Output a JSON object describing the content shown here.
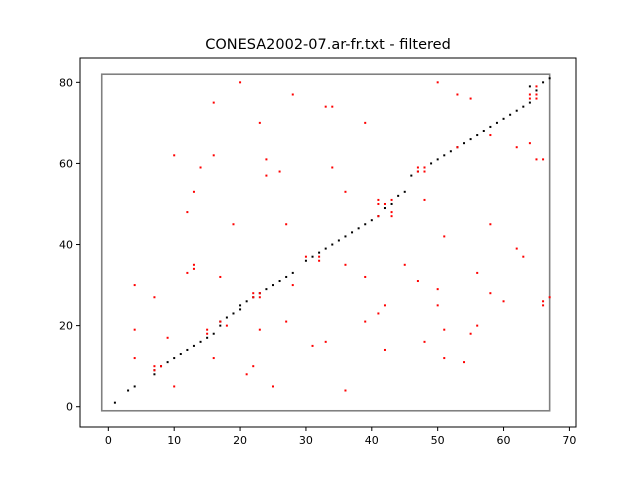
{
  "chart_data": {
    "type": "scatter",
    "title": "CONESA2002-07.ar-fr.txt - filtered",
    "xlabel": "",
    "ylabel": "",
    "xlim": [
      -4.3,
      71
    ],
    "ylim": [
      -5,
      86
    ],
    "xticks": [
      0,
      10,
      20,
      30,
      40,
      50,
      60,
      70
    ],
    "yticks": [
      0,
      20,
      40,
      60,
      80
    ],
    "grid": false,
    "colors": {
      "black": "#000000",
      "red": "#ff0000",
      "box": "#808080"
    },
    "series": [
      {
        "color": "#000000",
        "points": [
          [
            1,
            1
          ],
          [
            3,
            4
          ],
          [
            4,
            5
          ],
          [
            7,
            8
          ],
          [
            7,
            9
          ],
          [
            8,
            10
          ],
          [
            9,
            11
          ],
          [
            10,
            12
          ],
          [
            11,
            13
          ],
          [
            12,
            14
          ],
          [
            13,
            15
          ],
          [
            14,
            16
          ],
          [
            15,
            17
          ],
          [
            16,
            18
          ],
          [
            17,
            20
          ],
          [
            17,
            21
          ],
          [
            18,
            22
          ],
          [
            19,
            23
          ],
          [
            20,
            24
          ],
          [
            20,
            25
          ],
          [
            21,
            26
          ],
          [
            22,
            27
          ],
          [
            23,
            28
          ],
          [
            24,
            29
          ],
          [
            25,
            30
          ],
          [
            26,
            31
          ],
          [
            27,
            32
          ],
          [
            28,
            33
          ],
          [
            30,
            36
          ],
          [
            31,
            37
          ],
          [
            32,
            38
          ],
          [
            33,
            39
          ],
          [
            34,
            40
          ],
          [
            35,
            41
          ],
          [
            36,
            42
          ],
          [
            37,
            43
          ],
          [
            38,
            44
          ],
          [
            39,
            45
          ],
          [
            40,
            46
          ],
          [
            41,
            47
          ],
          [
            42,
            49
          ],
          [
            43,
            50
          ],
          [
            44,
            52
          ],
          [
            45,
            53
          ],
          [
            46,
            57
          ],
          [
            47,
            58
          ],
          [
            48,
            59
          ],
          [
            49,
            60
          ],
          [
            50,
            61
          ],
          [
            51,
            62
          ],
          [
            52,
            63
          ],
          [
            53,
            64
          ],
          [
            54,
            65
          ],
          [
            55,
            66
          ],
          [
            56,
            67
          ],
          [
            57,
            68
          ],
          [
            58,
            69
          ],
          [
            59,
            70
          ],
          [
            60,
            71
          ],
          [
            61,
            72
          ],
          [
            62,
            73
          ],
          [
            63,
            74
          ],
          [
            64,
            75
          ],
          [
            64,
            79
          ],
          [
            65,
            78
          ],
          [
            66,
            80
          ],
          [
            67,
            81
          ]
        ]
      },
      {
        "color": "#ff0000",
        "points": [
          [
            4,
            12
          ],
          [
            4,
            19
          ],
          [
            4,
            30
          ],
          [
            7,
            9
          ],
          [
            7,
            10
          ],
          [
            7,
            27
          ],
          [
            8,
            10
          ],
          [
            9,
            17
          ],
          [
            10,
            5
          ],
          [
            10,
            62
          ],
          [
            12,
            33
          ],
          [
            12,
            48
          ],
          [
            13,
            34
          ],
          [
            13,
            35
          ],
          [
            13,
            53
          ],
          [
            14,
            59
          ],
          [
            15,
            18
          ],
          [
            15,
            19
          ],
          [
            16,
            12
          ],
          [
            16,
            62
          ],
          [
            16,
            75
          ],
          [
            17,
            21
          ],
          [
            17,
            32
          ],
          [
            18,
            20
          ],
          [
            19,
            45
          ],
          [
            20,
            80
          ],
          [
            21,
            8
          ],
          [
            22,
            10
          ],
          [
            22,
            27
          ],
          [
            22,
            28
          ],
          [
            23,
            19
          ],
          [
            23,
            27
          ],
          [
            23,
            28
          ],
          [
            23,
            70
          ],
          [
            24,
            57
          ],
          [
            24,
            61
          ],
          [
            25,
            5
          ],
          [
            26,
            58
          ],
          [
            27,
            21
          ],
          [
            27,
            45
          ],
          [
            28,
            30
          ],
          [
            28,
            77
          ],
          [
            30,
            37
          ],
          [
            31,
            15
          ],
          [
            32,
            36
          ],
          [
            32,
            37
          ],
          [
            33,
            16
          ],
          [
            33,
            74
          ],
          [
            34,
            59
          ],
          [
            34,
            74
          ],
          [
            36,
            4
          ],
          [
            36,
            35
          ],
          [
            36,
            53
          ],
          [
            39,
            21
          ],
          [
            39,
            32
          ],
          [
            39,
            70
          ],
          [
            41,
            23
          ],
          [
            41,
            47
          ],
          [
            41,
            50
          ],
          [
            41,
            51
          ],
          [
            42,
            14
          ],
          [
            42,
            25
          ],
          [
            42,
            50
          ],
          [
            43,
            47
          ],
          [
            43,
            48
          ],
          [
            43,
            51
          ],
          [
            45,
            35
          ],
          [
            47,
            31
          ],
          [
            47,
            58
          ],
          [
            47,
            59
          ],
          [
            48,
            16
          ],
          [
            48,
            51
          ],
          [
            48,
            58
          ],
          [
            48,
            59
          ],
          [
            50,
            25
          ],
          [
            50,
            29
          ],
          [
            50,
            80
          ],
          [
            51,
            12
          ],
          [
            51,
            19
          ],
          [
            51,
            42
          ],
          [
            53,
            64
          ],
          [
            53,
            77
          ],
          [
            54,
            11
          ],
          [
            55,
            18
          ],
          [
            55,
            76
          ],
          [
            56,
            20
          ],
          [
            56,
            33
          ],
          [
            58,
            28
          ],
          [
            58,
            45
          ],
          [
            58,
            67
          ],
          [
            60,
            26
          ],
          [
            62,
            39
          ],
          [
            62,
            64
          ],
          [
            63,
            37
          ],
          [
            64,
            65
          ],
          [
            64,
            76
          ],
          [
            64,
            77
          ],
          [
            65,
            61
          ],
          [
            65,
            76
          ],
          [
            65,
            77
          ],
          [
            65,
            79
          ],
          [
            66,
            25
          ],
          [
            66,
            26
          ],
          [
            66,
            61
          ],
          [
            67,
            27
          ]
        ]
      }
    ],
    "bounding_box": {
      "x": [
        -1,
        67
      ],
      "y": [
        -1,
        82
      ]
    }
  }
}
